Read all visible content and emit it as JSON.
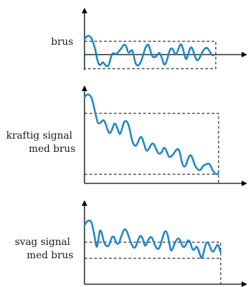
{
  "colors": {
    "signal": "#1f87c4",
    "axis": "#000000"
  },
  "panels": [
    {
      "label_lines": [
        "brus"
      ]
    },
    {
      "label_lines": [
        "kraftig signal",
        "med brus"
      ]
    },
    {
      "label_lines": [
        "svag signal",
        "med brus"
      ]
    }
  ]
}
